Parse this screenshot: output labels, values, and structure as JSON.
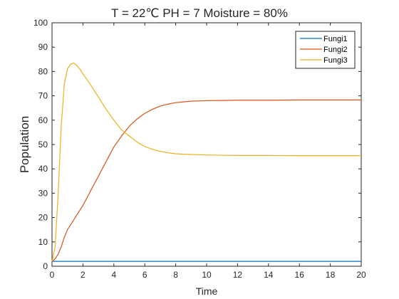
{
  "chart_data": {
    "type": "line",
    "title": "T = 22℃ PH = 7 Moisture = 80%",
    "xlabel": "Time",
    "ylabel": "Population",
    "xlim": [
      0,
      20
    ],
    "ylim": [
      0,
      100
    ],
    "xticks": [
      "0",
      "2",
      "4",
      "6",
      "8",
      "10",
      "12",
      "14",
      "16",
      "18",
      "20"
    ],
    "yticks": [
      "0",
      "10",
      "20",
      "30",
      "40",
      "50",
      "60",
      "70",
      "80",
      "90",
      "100"
    ],
    "grid": false,
    "legend_position": "top-right",
    "series": [
      {
        "name": "Fungi1",
        "color": "#0072BD",
        "x": [
          0,
          2,
          4,
          6,
          8,
          10,
          12,
          14,
          16,
          18,
          20
        ],
        "y": [
          2,
          2,
          2,
          2,
          2,
          2,
          2,
          2,
          2,
          2,
          2
        ]
      },
      {
        "name": "Fungi2",
        "color": "#D95319",
        "x": [
          0,
          0.2,
          0.4,
          0.6,
          0.8,
          1.0,
          1.5,
          2.0,
          2.5,
          3.0,
          3.5,
          4.0,
          4.5,
          5.0,
          5.5,
          6.0,
          6.5,
          7.0,
          7.5,
          8.0,
          8.5,
          9.0,
          10,
          11,
          12,
          13,
          14,
          16,
          18,
          20
        ],
        "y": [
          2,
          3,
          5,
          8,
          12,
          15,
          20,
          25,
          31,
          37,
          43,
          49,
          53.5,
          57.5,
          60.5,
          62.8,
          64.5,
          65.8,
          66.6,
          67.2,
          67.5,
          67.8,
          68.0,
          68.1,
          68.2,
          68.2,
          68.2,
          68.3,
          68.3,
          68.3
        ]
      },
      {
        "name": "Fungi3",
        "color": "#EDB120",
        "x": [
          0,
          0.2,
          0.4,
          0.6,
          0.8,
          1.0,
          1.2,
          1.4,
          1.6,
          1.8,
          2.0,
          2.5,
          3.0,
          3.5,
          4.0,
          4.5,
          5.0,
          5.5,
          6.0,
          6.5,
          7.0,
          7.5,
          8.0,
          9.0,
          10,
          11,
          12,
          14,
          16,
          18,
          20
        ],
        "y": [
          2,
          8,
          30,
          58,
          75,
          81,
          83,
          83.5,
          82.5,
          81,
          79,
          74.5,
          69.5,
          64.5,
          60,
          56,
          53.5,
          51,
          49.2,
          48,
          47.2,
          46.6,
          46.2,
          45.9,
          45.7,
          45.6,
          45.5,
          45.5,
          45.4,
          45.4,
          45.4
        ]
      }
    ]
  }
}
